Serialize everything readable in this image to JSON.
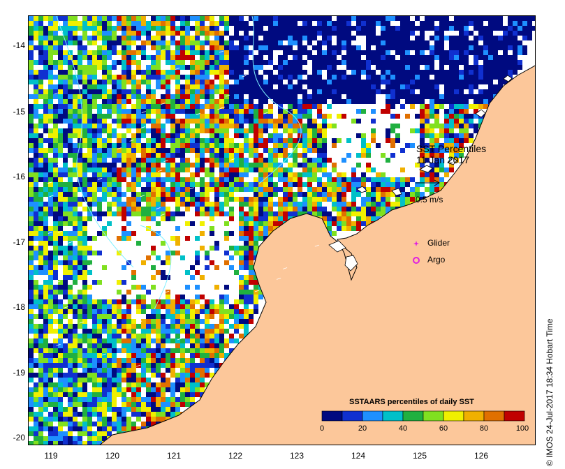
{
  "map": {
    "title": "SST Percentiles",
    "date": "11 Jan 2017",
    "scale_arrow_label": "0.5 m/s",
    "lat_ticks": [
      "-14",
      "-15",
      "-16",
      "-17",
      "-18",
      "-19",
      "-20"
    ],
    "lon_ticks": [
      "119",
      "120",
      "121",
      "122",
      "123",
      "124",
      "125",
      "126"
    ],
    "land_color": "#fcc79a",
    "coast_color": "#000000",
    "contour_color": "#7ef0ff"
  },
  "legend": {
    "glider_label": "Glider",
    "argo_label": "Argo",
    "marker_color": "#e020e0"
  },
  "colorbar": {
    "title": "SSTAARS percentiles of daily SST",
    "tick_labels": [
      "0",
      "20",
      "40",
      "60",
      "80",
      "100"
    ],
    "colors": [
      "#000a80",
      "#1030d0",
      "#1e90ff",
      "#00c0c8",
      "#20b040",
      "#80e020",
      "#f0f000",
      "#f0b000",
      "#e07000",
      "#c00000"
    ]
  },
  "credit": "© IMOS 24-Jul-2017 18:34 Hobart Time"
}
